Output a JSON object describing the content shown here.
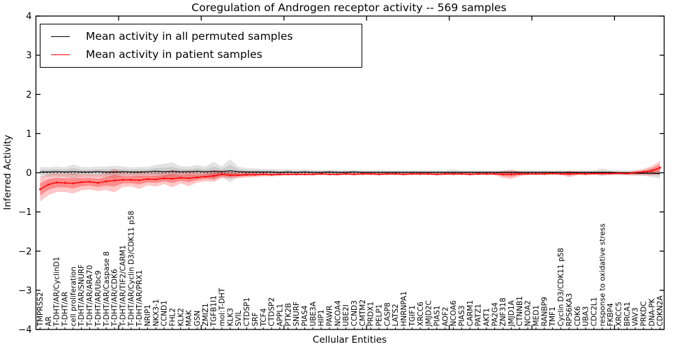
{
  "chart_data": {
    "type": "line",
    "title": "Coregulation of Androgen receptor activity -- 569 samples",
    "xlabel": "Cellular Entities",
    "ylabel": "Inferred Activity",
    "ylim": [
      -4,
      4
    ],
    "yticks": [
      4,
      3,
      2,
      1,
      0,
      -1,
      -2,
      -3,
      -4
    ],
    "ytick_labels": [
      "4",
      "3",
      "2",
      "1",
      "0",
      "−1",
      "−2",
      "−3",
      "−4"
    ],
    "xticks_major": [
      10,
      20,
      30,
      40,
      50,
      60,
      70
    ],
    "grid": false,
    "legend_position": "upper left",
    "zero_line": {
      "style": "dotted",
      "color": "#000000"
    },
    "categories": [
      "TMPRSS2",
      "AR",
      "T-DHT/AR/CyclinD1",
      "T-DHT/AR",
      "cell proliferation",
      "T-DHT/AR/SNURF",
      "T-DHT/AR/ARA70",
      "T-DHT/AR/Ubc9",
      "T-DHT/AR/Caspase 8",
      "T-DHT/AR/CDK6",
      "T-DHT/AR/TIF2/CARM1",
      "T-DHT/AR/Cyclin D3/CDK11 p58",
      "T-DHT/AR/PRX1",
      "NRIP1",
      "NKX3-1",
      "CCND1",
      "FHL2",
      "KLK2",
      "MAK",
      "GSN",
      "ZMIZ1",
      "TGFB1I1",
      "mol:T-DHT",
      "KLK3",
      "SVIL",
      "CTDSP1",
      "SRF",
      "TCF4",
      "CTDSP2",
      "APPL1",
      "PTK2B",
      "SNURF",
      "PIAS4",
      "UBE3A",
      "HIP1",
      "PAWR",
      "NCOA4",
      "UBE2I",
      "CCND3",
      "CMTM2",
      "PRDX1",
      "PELP1",
      "CASP8",
      "LATS2",
      "HNRNPA1",
      "TGIF1",
      "XRCC6",
      "JMJD2C",
      "PIAS1",
      "AOF2",
      "NCOA6",
      "PIAS3",
      "CARM1",
      "PATZ1",
      "AKT1",
      "PA2G4",
      "ZNF318",
      "JMJD1A",
      "CTNNB1",
      "NCOA2",
      "MED1",
      "RANBP9",
      "TMF1",
      "Cyclin D3/CDK11 p58",
      "RPS6KA3",
      "CDK6",
      "UBA3",
      "CDC2L1",
      "response to oxidative stress",
      "FKBP4",
      "XRCC5",
      "BRCA1",
      "VAV3",
      "PRKDC",
      "DNA-PK",
      "CDKN2A"
    ],
    "series": [
      {
        "name": "Mean activity in all permuted samples",
        "color": "#000000",
        "band_color": "#b0b0b0",
        "band_opacity": 0.35,
        "values": [
          0.02,
          0.02,
          0.03,
          0.02,
          0.03,
          0.02,
          0.02,
          0.03,
          0.02,
          0.02,
          0.03,
          0.02,
          0.02,
          0.03,
          0.04,
          0.03,
          0.04,
          0.03,
          0.03,
          0.04,
          0.03,
          0.04,
          0.03,
          0.05,
          0.03,
          0.02,
          0.02,
          0.02,
          0.02,
          0.01,
          0.02,
          0.01,
          0.02,
          0.01,
          0.01,
          0.02,
          0.01,
          0.01,
          0.02,
          0.01,
          0.01,
          0.01,
          0.01,
          0.01,
          0.01,
          0.01,
          0.01,
          0.01,
          0.01,
          0.01,
          0.01,
          0.01,
          0.01,
          0.01,
          0.01,
          0.01,
          0.01,
          0.01,
          0.01,
          0.01,
          0.01,
          0.01,
          0.01,
          0.01,
          0.01,
          0.01,
          0.01,
          0.01,
          0.01,
          0.01,
          0.0,
          0.0,
          -0.01,
          -0.01,
          -0.01,
          -0.02
        ],
        "band_half_width": [
          0.13,
          0.12,
          0.13,
          0.12,
          0.18,
          0.13,
          0.12,
          0.13,
          0.14,
          0.16,
          0.13,
          0.12,
          0.13,
          0.12,
          0.16,
          0.2,
          0.22,
          0.14,
          0.13,
          0.16,
          0.13,
          0.24,
          0.13,
          0.3,
          0.12,
          0.1,
          0.09,
          0.08,
          0.08,
          0.075,
          0.07,
          0.07,
          0.065,
          0.065,
          0.06,
          0.06,
          0.06,
          0.06,
          0.055,
          0.055,
          0.055,
          0.055,
          0.05,
          0.05,
          0.05,
          0.05,
          0.05,
          0.05,
          0.05,
          0.05,
          0.08,
          0.05,
          0.05,
          0.05,
          0.05,
          0.05,
          0.05,
          0.05,
          0.05,
          0.05,
          0.05,
          0.05,
          0.05,
          0.05,
          0.05,
          0.05,
          0.05,
          0.05,
          0.1,
          0.06,
          0.06,
          0.06,
          0.065,
          0.07,
          0.1,
          0.13
        ]
      },
      {
        "name": "Mean activity in patient samples",
        "color": "#ff0000",
        "band_color": "#ff0000",
        "band_opacity": 0.22,
        "values": [
          -0.42,
          -0.3,
          -0.25,
          -0.26,
          -0.27,
          -0.24,
          -0.23,
          -0.26,
          -0.22,
          -0.2,
          -0.18,
          -0.18,
          -0.19,
          -0.16,
          -0.17,
          -0.14,
          -0.15,
          -0.13,
          -0.14,
          -0.12,
          -0.1,
          -0.08,
          -0.04,
          -0.06,
          -0.06,
          -0.05,
          -0.05,
          -0.04,
          -0.05,
          -0.04,
          -0.04,
          -0.04,
          -0.04,
          -0.04,
          -0.03,
          -0.04,
          -0.04,
          -0.03,
          -0.04,
          -0.03,
          -0.03,
          -0.04,
          -0.03,
          -0.03,
          -0.04,
          -0.03,
          -0.03,
          -0.03,
          -0.04,
          -0.03,
          -0.03,
          -0.03,
          -0.04,
          -0.03,
          -0.03,
          -0.03,
          -0.04,
          -0.04,
          -0.03,
          -0.03,
          -0.03,
          -0.03,
          -0.02,
          -0.03,
          -0.03,
          -0.02,
          -0.03,
          -0.02,
          -0.02,
          -0.02,
          -0.01,
          -0.02,
          0.0,
          0.02,
          0.05,
          0.13
        ],
        "band_half_width": [
          0.31,
          0.27,
          0.24,
          0.23,
          0.26,
          0.21,
          0.2,
          0.21,
          0.22,
          0.3,
          0.18,
          0.17,
          0.22,
          0.16,
          0.18,
          0.15,
          0.22,
          0.14,
          0.2,
          0.13,
          0.12,
          0.15,
          0.1,
          0.09,
          0.08,
          0.07,
          0.06,
          0.05,
          0.045,
          0.04,
          0.03,
          0.03,
          0.03,
          0.03,
          0.03,
          0.03,
          0.03,
          0.03,
          0.03,
          0.03,
          0.03,
          0.03,
          0.03,
          0.03,
          0.03,
          0.03,
          0.03,
          0.03,
          0.03,
          0.03,
          0.03,
          0.03,
          0.03,
          0.03,
          0.03,
          0.03,
          0.09,
          0.12,
          0.06,
          0.03,
          0.03,
          0.03,
          0.03,
          0.03,
          0.08,
          0.045,
          0.035,
          0.035,
          0.04,
          0.04,
          0.04,
          0.04,
          0.06,
          0.08,
          0.12,
          0.17
        ]
      }
    ]
  }
}
